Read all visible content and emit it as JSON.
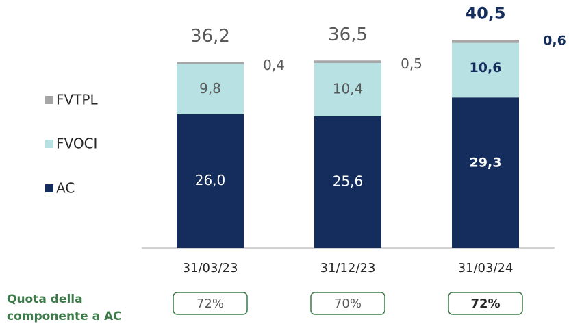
{
  "chart_data": {
    "type": "stacked-bar",
    "categories": [
      "31/03/23",
      "31/12/23",
      "31/03/24"
    ],
    "series": [
      {
        "name": "AC",
        "color": "#142d5c",
        "values": [
          26.0,
          25.6,
          29.3
        ],
        "value_labels": [
          "26,0",
          "25,6",
          "29,3"
        ]
      },
      {
        "name": "FVOCI",
        "color": "#b7e1e3",
        "values": [
          9.8,
          10.4,
          10.6
        ],
        "value_labels": [
          "9,8",
          "10,4",
          "10,6"
        ]
      },
      {
        "name": "FVTPL",
        "color": "#a6a6a6",
        "values": [
          0.4,
          0.5,
          0.6
        ],
        "value_labels": [
          "0,4",
          "0,5",
          "0,6"
        ]
      }
    ],
    "totals": [
      36.2,
      36.5,
      40.5
    ],
    "total_labels": [
      "36,2",
      "36,5",
      "40,5"
    ],
    "share": {
      "label_lines": [
        "Quota della",
        "componente a AC"
      ],
      "values": [
        72,
        70,
        72
      ],
      "value_labels": [
        "72%",
        "70%",
        "72%"
      ],
      "color": "#3d7a4a"
    }
  }
}
